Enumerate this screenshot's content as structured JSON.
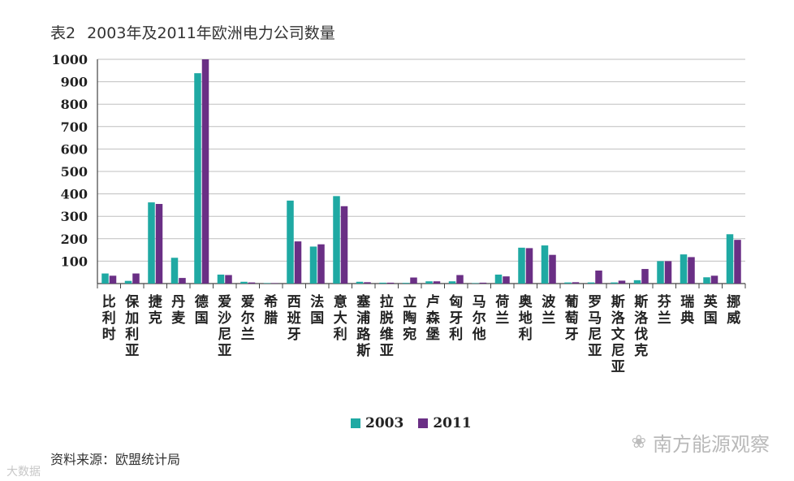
{
  "title": {
    "table_no": "表2",
    "text": "2003年及2011年欧洲电力公司数量"
  },
  "source": "资料来源：欧盟统计局",
  "watermark": "南方能源观察",
  "corner_watermark": "大数据",
  "legend": {
    "series_1": "2003",
    "series_2": "2011"
  },
  "colors": {
    "series_1": "#1fa9a3",
    "series_2": "#6a2f85",
    "grid": "#bfbfbf",
    "axis": "#444444"
  },
  "chart_data": {
    "type": "bar",
    "title": "2003年及2011年欧洲电力公司数量",
    "xlabel": "",
    "ylabel": "",
    "ylim": [
      0,
      1000
    ],
    "yticks": [
      100,
      200,
      300,
      400,
      500,
      600,
      700,
      800,
      900,
      1000
    ],
    "grid": true,
    "legend_position": "bottom",
    "categories": [
      "比利时",
      "保加利亚",
      "捷克",
      "丹麦",
      "德国",
      "爱沙尼亚",
      "爱尔兰",
      "希腊",
      "西班牙",
      "法国",
      "意大利",
      "塞浦路斯",
      "拉脱维亚",
      "立陶宛",
      "卢森堡",
      "匈牙利",
      "马尔他",
      "荷兰",
      "奥地利",
      "波兰",
      "葡萄牙",
      "罗马尼亚",
      "斯洛文尼亚",
      "斯洛伐克",
      "芬兰",
      "瑞典",
      "英国",
      "挪威"
    ],
    "series": [
      {
        "name": "2003",
        "values": [
          45,
          12,
          362,
          115,
          938,
          40,
          8,
          2,
          370,
          165,
          390,
          8,
          4,
          3,
          10,
          10,
          2,
          40,
          160,
          170,
          5,
          5,
          5,
          15,
          100,
          130,
          28,
          220
        ]
      },
      {
        "name": "2011",
        "values": [
          35,
          45,
          355,
          25,
          1000,
          38,
          5,
          2,
          188,
          175,
          345,
          6,
          4,
          27,
          10,
          38,
          4,
          32,
          158,
          128,
          6,
          58,
          13,
          65,
          100,
          118,
          35,
          195
        ]
      }
    ]
  }
}
